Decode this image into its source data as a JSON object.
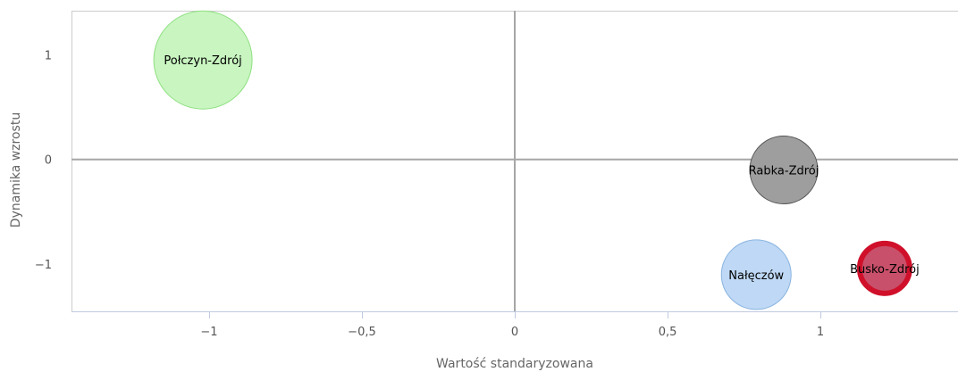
{
  "chart_data": {
    "type": "scatter",
    "title": "",
    "xlabel": "Wartość standaryzowana",
    "ylabel": "Dynamika wzrostu",
    "xlim": [
      -1.45,
      1.45
    ],
    "ylim": [
      -1.45,
      1.42
    ],
    "x_ticks": [
      -1,
      -0.5,
      0,
      0.5,
      1
    ],
    "x_tick_labels": [
      "−1",
      "−0,5",
      "0",
      "0,5",
      "1"
    ],
    "y_ticks": [
      1,
      0,
      -1
    ],
    "y_tick_labels": [
      "1",
      "0",
      "−1"
    ],
    "grid": false,
    "zero_lines": true,
    "points": [
      {
        "label": "Połczyn-Zdrój",
        "x": -1.02,
        "y": 0.95,
        "size": 55,
        "fill": "#c8f5c0",
        "stroke": "#8ee080",
        "stroke_width": 1
      },
      {
        "label": "Rabka-Zdrój",
        "x": 0.88,
        "y": -0.1,
        "size": 38,
        "fill": "#9e9e9e",
        "stroke": "#555555",
        "stroke_width": 1
      },
      {
        "label": "Nałęczów",
        "x": 0.79,
        "y": -1.1,
        "size": 39,
        "fill": "#bed8f5",
        "stroke": "#8ab4e0",
        "stroke_width": 1
      },
      {
        "label": "Busko-Zdrój",
        "x": 1.21,
        "y": -1.04,
        "size": 28,
        "fill": "#c8506a",
        "stroke": "#d0102a",
        "stroke_width": 6
      }
    ]
  }
}
